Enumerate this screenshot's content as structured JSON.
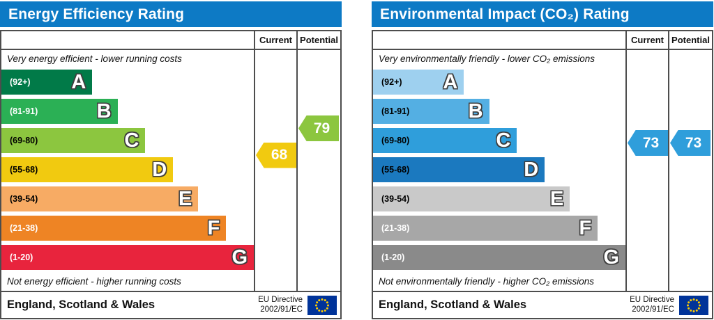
{
  "colors": {
    "header_bar": "#0d7ac5",
    "border": "#4d4d4d",
    "title_text": "#ffffff"
  },
  "eu_flag": {
    "field": "#003399",
    "stars": "#ffcc00"
  },
  "charts": [
    {
      "title": "Energy Efficiency Rating",
      "columns": {
        "current": "Current",
        "potential": "Potential"
      },
      "top_caption": "Very energy efficient - lower running costs",
      "bottom_caption": "Not energy efficient - higher running costs",
      "bands": [
        {
          "range": "(92+)",
          "min": 92,
          "max": 100,
          "letter": "A",
          "color": "#017a48",
          "width_pct": 36,
          "label_color": "#ffffff"
        },
        {
          "range": "(81-91)",
          "min": 81,
          "max": 91,
          "letter": "B",
          "color": "#2bb055",
          "width_pct": 46,
          "label_color": "#ffffff"
        },
        {
          "range": "(69-80)",
          "min": 69,
          "max": 80,
          "letter": "C",
          "color": "#8cc63f",
          "width_pct": 57,
          "label_color": "#000000"
        },
        {
          "range": "(55-68)",
          "min": 55,
          "max": 68,
          "letter": "D",
          "color": "#f1ca10",
          "width_pct": 68,
          "label_color": "#000000"
        },
        {
          "range": "(39-54)",
          "min": 39,
          "max": 54,
          "letter": "E",
          "color": "#f7ab64",
          "width_pct": 78,
          "label_color": "#000000"
        },
        {
          "range": "(21-38)",
          "min": 21,
          "max": 38,
          "letter": "F",
          "color": "#ee8424",
          "width_pct": 89,
          "label_color": "#ffffff"
        },
        {
          "range": "(1-20)",
          "min": 1,
          "max": 20,
          "letter": "G",
          "color": "#e8243d",
          "width_pct": 100,
          "label_color": "#ffffff"
        }
      ],
      "current": {
        "value": 68,
        "band_index": 3,
        "band_min": 55,
        "band_max": 68,
        "color": "#f1ca10"
      },
      "potential": {
        "value": 79,
        "band_index": 2,
        "band_min": 69,
        "band_max": 80,
        "color": "#8cc63f"
      },
      "footer": {
        "region": "England, Scotland & Wales",
        "directive_line1": "EU Directive",
        "directive_line2": "2002/91/EC"
      }
    },
    {
      "title": "Environmental Impact (CO₂) Rating",
      "columns": {
        "current": "Current",
        "potential": "Potential"
      },
      "top_caption": "Very environmentally friendly - lower CO₂ emissions",
      "bottom_caption": "Not environmentally friendly - higher CO₂ emissions",
      "bands": [
        {
          "range": "(92+)",
          "min": 92,
          "max": 100,
          "letter": "A",
          "color": "#9ed0ef",
          "width_pct": 36,
          "label_color": "#000000"
        },
        {
          "range": "(81-91)",
          "min": 81,
          "max": 91,
          "letter": "B",
          "color": "#54afe3",
          "width_pct": 46,
          "label_color": "#000000"
        },
        {
          "range": "(69-80)",
          "min": 69,
          "max": 80,
          "letter": "C",
          "color": "#2f9edb",
          "width_pct": 57,
          "label_color": "#000000"
        },
        {
          "range": "(55-68)",
          "min": 55,
          "max": 68,
          "letter": "D",
          "color": "#1b79bf",
          "width_pct": 68,
          "label_color": "#000000"
        },
        {
          "range": "(39-54)",
          "min": 39,
          "max": 54,
          "letter": "E",
          "color": "#c9c9c9",
          "width_pct": 78,
          "label_color": "#000000"
        },
        {
          "range": "(21-38)",
          "min": 21,
          "max": 38,
          "letter": "F",
          "color": "#a7a7a7",
          "width_pct": 89,
          "label_color": "#ffffff"
        },
        {
          "range": "(1-20)",
          "min": 1,
          "max": 20,
          "letter": "G",
          "color": "#8a8a8a",
          "width_pct": 100,
          "label_color": "#ffffff"
        }
      ],
      "current": {
        "value": 73,
        "band_index": 2,
        "band_min": 69,
        "band_max": 80,
        "color": "#2f9edb"
      },
      "potential": {
        "value": 73,
        "band_index": 2,
        "band_min": 69,
        "band_max": 80,
        "color": "#2f9edb"
      },
      "footer": {
        "region": "England, Scotland & Wales",
        "directive_line1": "EU Directive",
        "directive_line2": "2002/91/EC"
      }
    }
  ],
  "chart_data": [
    {
      "type": "bar",
      "title": "Energy Efficiency Rating",
      "categories": [
        "A (92+)",
        "B (81-91)",
        "C (69-80)",
        "D (55-68)",
        "E (39-54)",
        "F (21-38)",
        "G (1-20)"
      ],
      "band_bar_widths_pct": [
        36,
        46,
        57,
        68,
        78,
        89,
        100
      ],
      "series": [
        {
          "name": "Current",
          "values": [
            68
          ],
          "band": "D"
        },
        {
          "name": "Potential",
          "values": [
            79
          ],
          "band": "C"
        }
      ],
      "xlabel": "",
      "ylabel": "",
      "value_range": [
        1,
        100
      ],
      "annotations": [
        "Very energy efficient - lower running costs",
        "Not energy efficient - higher running costs"
      ],
      "legend_position": "right columns (Current / Potential)"
    },
    {
      "type": "bar",
      "title": "Environmental Impact (CO₂) Rating",
      "categories": [
        "A (92+)",
        "B (81-91)",
        "C (69-80)",
        "D (55-68)",
        "E (39-54)",
        "F (21-38)",
        "G (1-20)"
      ],
      "band_bar_widths_pct": [
        36,
        46,
        57,
        68,
        78,
        89,
        100
      ],
      "series": [
        {
          "name": "Current",
          "values": [
            73
          ],
          "band": "C"
        },
        {
          "name": "Potential",
          "values": [
            73
          ],
          "band": "C"
        }
      ],
      "xlabel": "",
      "ylabel": "",
      "value_range": [
        1,
        100
      ],
      "annotations": [
        "Very environmentally friendly - lower CO₂ emissions",
        "Not environmentally friendly - higher CO₂ emissions"
      ],
      "legend_position": "right columns (Current / Potential)"
    }
  ]
}
